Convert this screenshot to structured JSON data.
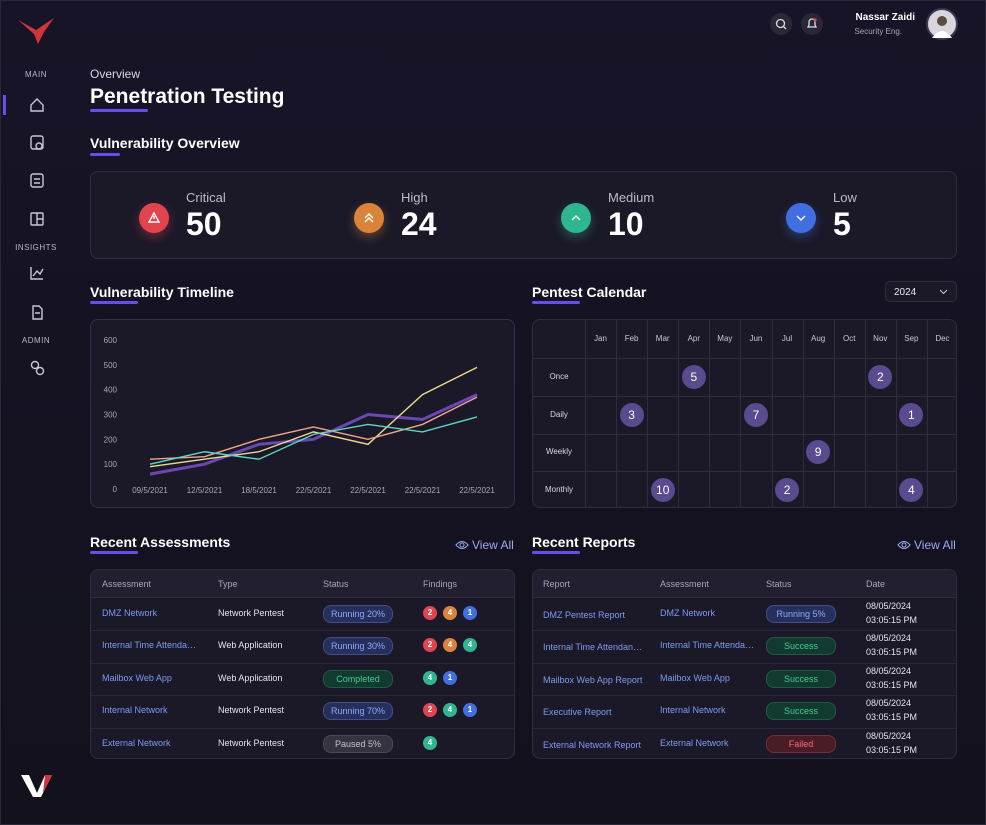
{
  "user": {
    "name": "Nassar Zaidi",
    "role": "Security Eng."
  },
  "nav": {
    "sections": [
      "MAIN",
      "INSIGHTS",
      "ADMIN"
    ]
  },
  "header": {
    "eyebrow": "Overview",
    "title": "Penetration Testing"
  },
  "overview": {
    "title": "Vulnerability Overview",
    "items": [
      {
        "label": "Critical",
        "value": 50,
        "color": "#e0444e"
      },
      {
        "label": "High",
        "value": 24,
        "color": "#d9843a"
      },
      {
        "label": "Medium",
        "value": 10,
        "color": "#2fb58f"
      },
      {
        "label": "Low",
        "value": 5,
        "color": "#3f6fe0"
      }
    ]
  },
  "chart_data": {
    "type": "line",
    "title": "Vulnerability Timeline",
    "x": [
      "09/5/2021",
      "12/5/2021",
      "18/5/2021",
      "22/5/2021",
      "22/5/2021",
      "22/5/2021",
      "22/5/2021"
    ],
    "ylim": [
      0,
      600
    ],
    "yticks": [
      0,
      100,
      200,
      300,
      400,
      500,
      600
    ],
    "series": [
      {
        "color": "#8a5cf0",
        "values": [
          60,
          100,
          180,
          200,
          300,
          280,
          380
        ]
      },
      {
        "color": "#e8dc8e",
        "values": [
          90,
          120,
          150,
          230,
          180,
          380,
          490
        ]
      },
      {
        "color": "#f0a58a",
        "values": [
          120,
          130,
          200,
          250,
          200,
          260,
          370
        ]
      },
      {
        "color": "#5ed6c4",
        "values": [
          100,
          150,
          120,
          220,
          260,
          230,
          290
        ]
      }
    ]
  },
  "calendar": {
    "title": "Pentest Calendar",
    "year": "2024",
    "months": [
      "Jan",
      "Feb",
      "Mar",
      "Apr",
      "May",
      "Jun",
      "Jul",
      "Aug",
      "Oct",
      "Nov",
      "Sep",
      "Dec"
    ],
    "rows": [
      {
        "label": "Once",
        "cells": [
          null,
          null,
          null,
          5,
          null,
          null,
          null,
          null,
          null,
          2,
          null,
          null
        ]
      },
      {
        "label": "Daily",
        "cells": [
          null,
          3,
          null,
          null,
          null,
          7,
          null,
          null,
          null,
          null,
          1,
          null
        ]
      },
      {
        "label": "Weekly",
        "cells": [
          null,
          null,
          null,
          null,
          null,
          null,
          null,
          9,
          null,
          null,
          null,
          null
        ]
      },
      {
        "label": "Monthly",
        "cells": [
          null,
          null,
          10,
          null,
          null,
          null,
          2,
          null,
          null,
          null,
          4,
          null
        ]
      }
    ]
  },
  "assessments": {
    "title": "Recent Assessments",
    "view_all": "View All",
    "columns": [
      "Assessment",
      "Type",
      "Status",
      "Findings"
    ],
    "rows": [
      {
        "name": "DMZ Network",
        "type": "Network Pentest",
        "status": "Running 20%",
        "kind": "running",
        "findings": [
          {
            "severity": "critical",
            "count": 2
          },
          {
            "severity": "high",
            "count": 4
          },
          {
            "severity": "low",
            "count": 1
          }
        ]
      },
      {
        "name": "Internal Time Attenda…",
        "type": "Web Application",
        "status": "Running 30%",
        "kind": "running",
        "findings": [
          {
            "severity": "critical",
            "count": 2
          },
          {
            "severity": "high",
            "count": 4
          },
          {
            "severity": "medium",
            "count": 4
          }
        ]
      },
      {
        "name": "Mailbox Web App",
        "type": "Web Application",
        "status": "Completed",
        "kind": "success",
        "findings": [
          {
            "severity": "medium",
            "count": 4
          },
          {
            "severity": "low",
            "count": 1
          }
        ]
      },
      {
        "name": "Internal Network",
        "type": "Network Pentest",
        "status": "Running 70%",
        "kind": "running",
        "findings": [
          {
            "severity": "critical",
            "count": 2
          },
          {
            "severity": "medium",
            "count": 4
          },
          {
            "severity": "low",
            "count": 1
          }
        ]
      },
      {
        "name": "External Network",
        "type": "Network Pentest",
        "status": "Paused 5%",
        "kind": "paused",
        "findings": [
          {
            "severity": "medium",
            "count": 4
          }
        ]
      }
    ]
  },
  "reports": {
    "title": "Recent Reports",
    "view_all": "View All",
    "columns": [
      "Report",
      "Assessment",
      "Status",
      "Date"
    ],
    "rows": [
      {
        "report": "DMZ Pentest Report",
        "assessment": "DMZ Network",
        "status": "Running 5%",
        "kind": "running",
        "date": "08/05/2024",
        "time": "03:05:15 PM"
      },
      {
        "report": "Internal Time Attendan…",
        "assessment": "Internal Time Attenda…",
        "status": "Success",
        "kind": "success",
        "date": "08/05/2024",
        "time": "03:05:15 PM"
      },
      {
        "report": "Mailbox Web App Report",
        "assessment": "Mailbox Web App",
        "status": "Success",
        "kind": "success",
        "date": "08/05/2024",
        "time": "03:05:15 PM"
      },
      {
        "report": "Executive Report",
        "assessment": "Internal Network",
        "status": "Success",
        "kind": "success",
        "date": "08/05/2024",
        "time": "03:05:15 PM"
      },
      {
        "report": "External Network Report",
        "assessment": "External Network",
        "status": "Failed",
        "kind": "failed",
        "date": "08/05/2024",
        "time": "03:05:15 PM"
      }
    ]
  }
}
